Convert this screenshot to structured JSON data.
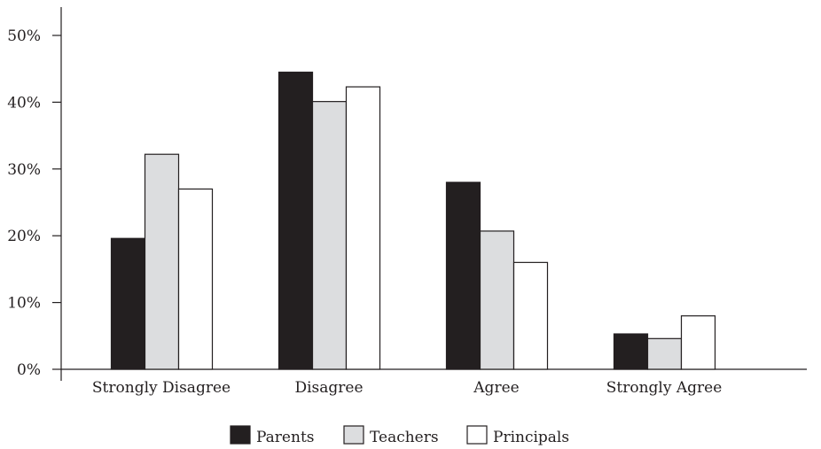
{
  "chart_data": {
    "type": "bar",
    "categories": [
      "Strongly Disagree",
      "Disagree",
      "Agree",
      "Strongly Agree"
    ],
    "series": [
      {
        "name": "Parents",
        "values": [
          19.6,
          44.5,
          28.0,
          5.3
        ],
        "color": "#231f20"
      },
      {
        "name": "Teachers",
        "values": [
          32.2,
          40.1,
          20.7,
          4.6
        ],
        "color": "#dcdddf"
      },
      {
        "name": "Principals",
        "values": [
          27.0,
          42.3,
          16.0,
          8.0
        ],
        "color": "#ffffff"
      }
    ],
    "ylim": [
      0,
      50
    ],
    "yticks": [
      {
        "value": 0,
        "label": "0%"
      },
      {
        "value": 10,
        "label": "10%"
      },
      {
        "value": 20,
        "label": "20%"
      },
      {
        "value": 30,
        "label": "30%"
      },
      {
        "value": 40,
        "label": "40%"
      },
      {
        "value": 50,
        "label": "50%"
      }
    ],
    "legend_position": "bottom-center",
    "grid": false,
    "stroke_color": "#231f20"
  }
}
